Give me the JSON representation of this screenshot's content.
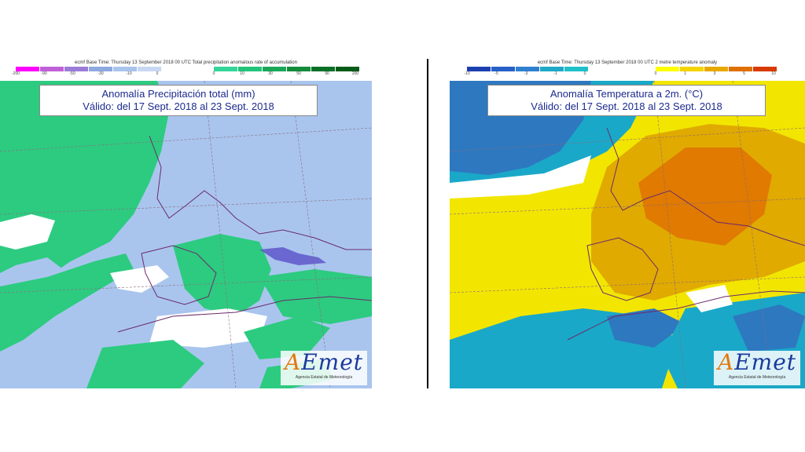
{
  "left_map": {
    "header": "ecmf  Base Time: Thursday 13 September 2018 00 UTC Total precipitation anomalous rate of accumulation",
    "title_line1": "Anomalía Precipitación total (mm)",
    "title_line2": "Válido: del 17 Sept. 2018 al 23 Sept. 2018",
    "scale_negative": {
      "colors": [
        "#ff00ff",
        "#c060d8",
        "#9a7cd8",
        "#8ea8e0",
        "#a8c4ec",
        "#c8d8f4"
      ],
      "ticks": [
        "-200",
        "-90",
        "-50",
        "-30",
        "-10",
        "0"
      ]
    },
    "scale_positive": {
      "colors": [
        "#33d69a",
        "#22c47a",
        "#1aa858",
        "#138c3c",
        "#0a7028",
        "#055a18"
      ],
      "ticks": [
        "0",
        "10",
        "30",
        "50",
        "90",
        "200"
      ]
    },
    "colors": {
      "wet": "#2dcb80",
      "dry": "#a9c5ee",
      "neutral": "#ffffff",
      "very_dry": "#5a4fc8"
    }
  },
  "right_map": {
    "header": "ecmf  Base Time: Thursday 13 September 2018 00 UTC 2 metre temperature anomaly",
    "title_line1": "Anomalía Temperatura a 2m. (°C)",
    "title_line2": "Válido: del 17 Sept. 2018 al 23 Sept. 2018",
    "scale_negative": {
      "colors": [
        "#1c3fb0",
        "#2660c8",
        "#2f80d0",
        "#1fa8c8",
        "#20c0c8"
      ],
      "ticks": [
        "-10",
        "-5",
        "-3",
        "-1",
        "0"
      ]
    },
    "scale_positive": {
      "colors": [
        "#ffff00",
        "#f5d400",
        "#e8a800",
        "#e07000",
        "#d83a00"
      ],
      "ticks": [
        "0",
        "1",
        "3",
        "5",
        "10"
      ]
    },
    "colors": {
      "warm": "#f2e600",
      "warmer": "#e0aa00",
      "hot": "#e07a00",
      "cool": "#1aa8c8",
      "cold": "#2e78c0",
      "neutral": "#ffffff"
    }
  },
  "logo": {
    "letters": "AEmet",
    "subtitle": "Agencia Estatal de Meteorología"
  }
}
